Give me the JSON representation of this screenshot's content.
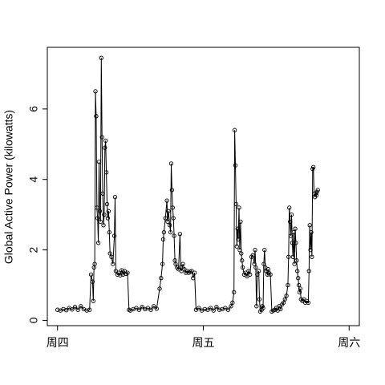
{
  "chart_data": {
    "type": "line",
    "ylabel": "Global Active Power (kilowatts)",
    "xlabel": "",
    "x_unit": "days",
    "xlim": [
      -0.07,
      2.07
    ],
    "ylim": [
      -0.15,
      7.75
    ],
    "y_ticks": [
      0,
      2,
      4,
      6
    ],
    "x_ticks": [
      {
        "value": 0,
        "label": "周四"
      },
      {
        "value": 1,
        "label": "周五"
      },
      {
        "value": 2,
        "label": "周六"
      }
    ],
    "marker": "open-circle",
    "line_color": "#000000",
    "series": [
      {
        "points": [
          [
            0.0,
            0.3
          ],
          [
            0.02,
            0.28
          ],
          [
            0.04,
            0.32
          ],
          [
            0.06,
            0.29
          ],
          [
            0.08,
            0.35
          ],
          [
            0.1,
            0.31
          ],
          [
            0.12,
            0.38
          ],
          [
            0.14,
            0.3
          ],
          [
            0.16,
            0.4
          ],
          [
            0.18,
            0.32
          ],
          [
            0.2,
            0.28
          ],
          [
            0.22,
            0.3
          ],
          [
            0.23,
            1.3
          ],
          [
            0.24,
            1.1
          ],
          [
            0.245,
            0.55
          ],
          [
            0.25,
            1.5
          ],
          [
            0.255,
            1.6
          ],
          [
            0.26,
            6.5
          ],
          [
            0.265,
            5.8
          ],
          [
            0.27,
            3.2
          ],
          [
            0.275,
            2.9
          ],
          [
            0.28,
            2.2
          ],
          [
            0.285,
            4.5
          ],
          [
            0.29,
            3.1
          ],
          [
            0.295,
            2.8
          ],
          [
            0.3,
            7.45
          ],
          [
            0.305,
            5.2
          ],
          [
            0.31,
            3.6
          ],
          [
            0.315,
            2.7
          ],
          [
            0.32,
            3.0
          ],
          [
            0.325,
            4.9
          ],
          [
            0.33,
            5.1
          ],
          [
            0.335,
            4.2
          ],
          [
            0.34,
            3.3
          ],
          [
            0.345,
            2.9
          ],
          [
            0.35,
            3.1
          ],
          [
            0.355,
            2.5
          ],
          [
            0.36,
            1.9
          ],
          [
            0.37,
            1.8
          ],
          [
            0.38,
            1.6
          ],
          [
            0.39,
            2.4
          ],
          [
            0.395,
            3.5
          ],
          [
            0.4,
            1.4
          ],
          [
            0.41,
            1.3
          ],
          [
            0.42,
            1.35
          ],
          [
            0.43,
            1.28
          ],
          [
            0.44,
            1.42
          ],
          [
            0.45,
            1.3
          ],
          [
            0.46,
            1.4
          ],
          [
            0.47,
            1.32
          ],
          [
            0.48,
            1.35
          ],
          [
            0.49,
            0.3
          ],
          [
            0.5,
            0.28
          ],
          [
            0.52,
            0.32
          ],
          [
            0.54,
            0.35
          ],
          [
            0.56,
            0.3
          ],
          [
            0.58,
            0.38
          ],
          [
            0.6,
            0.32
          ],
          [
            0.62,
            0.35
          ],
          [
            0.64,
            0.3
          ],
          [
            0.66,
            0.4
          ],
          [
            0.68,
            0.33
          ],
          [
            0.7,
            0.9
          ],
          [
            0.71,
            1.2
          ],
          [
            0.72,
            1.6
          ],
          [
            0.725,
            2.3
          ],
          [
            0.73,
            2.5
          ],
          [
            0.74,
            2.9
          ],
          [
            0.75,
            3.4
          ],
          [
            0.755,
            2.8
          ],
          [
            0.76,
            3.1
          ],
          [
            0.77,
            2.7
          ],
          [
            0.775,
            2.5
          ],
          [
            0.78,
            4.45
          ],
          [
            0.785,
            3.7
          ],
          [
            0.79,
            3.2
          ],
          [
            0.795,
            2.9
          ],
          [
            0.8,
            2.4
          ],
          [
            0.805,
            1.7
          ],
          [
            0.81,
            1.6
          ],
          [
            0.82,
            1.5
          ],
          [
            0.83,
            1.45
          ],
          [
            0.84,
            2.45
          ],
          [
            0.845,
            1.5
          ],
          [
            0.85,
            1.4
          ],
          [
            0.86,
            1.6
          ],
          [
            0.87,
            1.45
          ],
          [
            0.88,
            1.35
          ],
          [
            0.89,
            1.4
          ],
          [
            0.9,
            1.35
          ],
          [
            0.91,
            1.38
          ],
          [
            0.92,
            1.4
          ],
          [
            0.93,
            1.2
          ],
          [
            0.94,
            1.35
          ],
          [
            0.95,
            0.3
          ],
          [
            0.97,
            0.35
          ],
          [
            0.99,
            0.28
          ],
          [
            1.01,
            0.32
          ],
          [
            1.03,
            0.3
          ],
          [
            1.05,
            0.35
          ],
          [
            1.07,
            0.28
          ],
          [
            1.09,
            0.38
          ],
          [
            1.11,
            0.3
          ],
          [
            1.13,
            0.32
          ],
          [
            1.15,
            0.35
          ],
          [
            1.17,
            0.3
          ],
          [
            1.19,
            0.4
          ],
          [
            1.2,
            0.5
          ],
          [
            1.21,
            0.8
          ],
          [
            1.215,
            5.4
          ],
          [
            1.22,
            4.4
          ],
          [
            1.225,
            3.3
          ],
          [
            1.23,
            2.1
          ],
          [
            1.235,
            2.6
          ],
          [
            1.24,
            2.3
          ],
          [
            1.245,
            3.2
          ],
          [
            1.25,
            2.0
          ],
          [
            1.255,
            2.8
          ],
          [
            1.26,
            1.9
          ],
          [
            1.265,
            1.7
          ],
          [
            1.27,
            1.5
          ],
          [
            1.28,
            1.3
          ],
          [
            1.29,
            1.35
          ],
          [
            1.3,
            1.25
          ],
          [
            1.31,
            1.4
          ],
          [
            1.32,
            1.3
          ],
          [
            1.33,
            1.8
          ],
          [
            1.34,
            1.85
          ],
          [
            1.35,
            1.6
          ],
          [
            1.355,
            2.0
          ],
          [
            1.36,
            1.5
          ],
          [
            1.365,
            0.4
          ],
          [
            1.37,
            1.3
          ],
          [
            1.38,
            1.4
          ],
          [
            1.385,
            0.6
          ],
          [
            1.39,
            0.25
          ],
          [
            1.4,
            0.3
          ],
          [
            1.405,
            0.4
          ],
          [
            1.41,
            0.35
          ],
          [
            1.415,
            1.6
          ],
          [
            1.42,
            2.0
          ],
          [
            1.425,
            1.5
          ],
          [
            1.43,
            1.4
          ],
          [
            1.44,
            1.3
          ],
          [
            1.445,
            1.45
          ],
          [
            1.45,
            1.35
          ],
          [
            1.46,
            1.3
          ],
          [
            1.47,
            0.25
          ],
          [
            1.48,
            0.28
          ],
          [
            1.49,
            0.3
          ],
          [
            1.5,
            0.35
          ],
          [
            1.51,
            0.28
          ],
          [
            1.52,
            0.4
          ],
          [
            1.53,
            0.32
          ],
          [
            1.54,
            0.45
          ],
          [
            1.55,
            0.5
          ],
          [
            1.56,
            0.6
          ],
          [
            1.57,
            0.7
          ],
          [
            1.58,
            1.0
          ],
          [
            1.585,
            1.8
          ],
          [
            1.59,
            3.2
          ],
          [
            1.595,
            2.8
          ],
          [
            1.6,
            2.4
          ],
          [
            1.605,
            3.0
          ],
          [
            1.61,
            2.2
          ],
          [
            1.615,
            1.8
          ],
          [
            1.62,
            2.5
          ],
          [
            1.625,
            1.6
          ],
          [
            1.63,
            2.6
          ],
          [
            1.635,
            2.2
          ],
          [
            1.64,
            1.7
          ],
          [
            1.645,
            1.4
          ],
          [
            1.65,
            1.2
          ],
          [
            1.655,
            1.0
          ],
          [
            1.66,
            0.8
          ],
          [
            1.665,
            0.9
          ],
          [
            1.67,
            0.6
          ],
          [
            1.68,
            0.55
          ],
          [
            1.69,
            0.6
          ],
          [
            1.7,
            0.5
          ],
          [
            1.71,
            0.55
          ],
          [
            1.72,
            0.5
          ],
          [
            1.725,
            1.4
          ],
          [
            1.73,
            2.7
          ],
          [
            1.735,
            2.0
          ],
          [
            1.74,
            2.5
          ],
          [
            1.745,
            1.8
          ],
          [
            1.75,
            4.3
          ],
          [
            1.755,
            4.35
          ],
          [
            1.76,
            3.6
          ],
          [
            1.765,
            3.5
          ],
          [
            1.77,
            3.6
          ],
          [
            1.775,
            3.55
          ],
          [
            1.78,
            3.65
          ],
          [
            1.785,
            3.7
          ]
        ]
      }
    ]
  }
}
